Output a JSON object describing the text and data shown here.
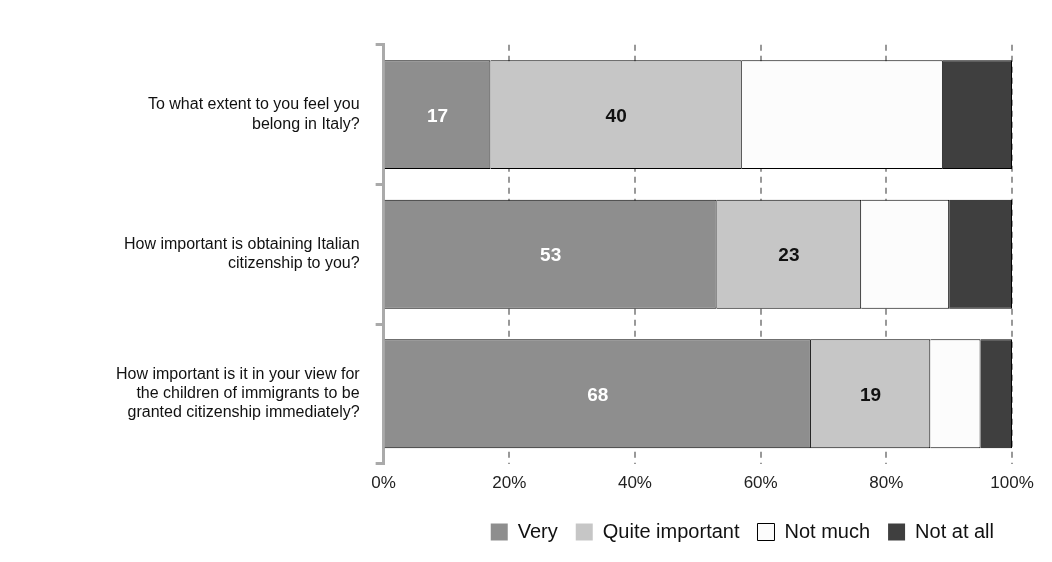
{
  "chart_data": {
    "type": "bar",
    "orientation": "horizontal",
    "stacked": true,
    "categories": [
      "To what extent to you feel you belong in Italy?",
      "How important is obtaining Italian citizenship to you?",
      "How important is it in your view for the children of immigrants to be granted citizenship immediately?"
    ],
    "series": [
      {
        "name": "Very",
        "color": "#8e8e8e",
        "values": [
          17,
          53,
          68
        ],
        "value_labels": [
          "17",
          "53",
          "68"
        ]
      },
      {
        "name": "Quite important",
        "color": "#c6c6c6",
        "values": [
          40,
          23,
          19
        ],
        "value_labels": [
          "40",
          "23",
          "19"
        ]
      },
      {
        "name": "Not much",
        "color": "#fcfcfc",
        "values": [
          32,
          14,
          8
        ]
      },
      {
        "name": "Not at all",
        "color": "#3f3f3f",
        "values": [
          11,
          10,
          5
        ]
      }
    ],
    "xlim": [
      0,
      100
    ],
    "xticks": [
      {
        "value": 0,
        "label": "0%"
      },
      {
        "value": 20,
        "label": "20%"
      },
      {
        "value": 40,
        "label": "40%"
      },
      {
        "value": 60,
        "label": "60%"
      },
      {
        "value": 80,
        "label": "80%"
      },
      {
        "value": 100,
        "label": "100%"
      }
    ],
    "grid": "x",
    "legend": "bottom"
  }
}
